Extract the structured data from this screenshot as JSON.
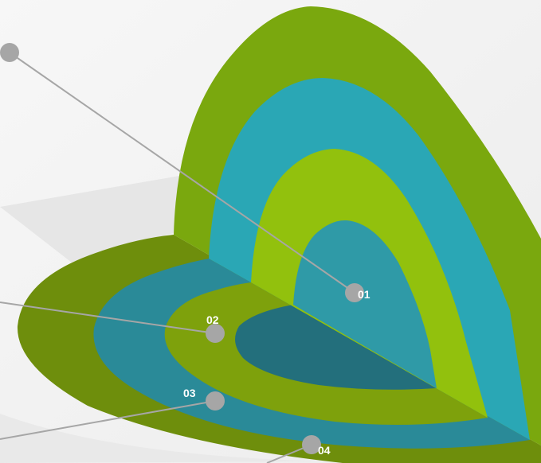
{
  "diagram": {
    "colors": {
      "background": "#f2f2f2",
      "ring_outer_green": "#7aa80e",
      "ring_teal": "#2aa7b5",
      "ring_lime": "#92c10d",
      "core_teal": "#2f9aa7",
      "floor_outer_green": "#6e8e0c",
      "floor_teal": "#2a8a98",
      "floor_lime": "#7ea10c",
      "floor_core": "#236f7c",
      "connector": "#a6a6a6",
      "marker": "#a6a6a6"
    },
    "markers": [
      {
        "label": "01"
      },
      {
        "label": "02"
      },
      {
        "label": "03"
      },
      {
        "label": "04"
      }
    ]
  }
}
